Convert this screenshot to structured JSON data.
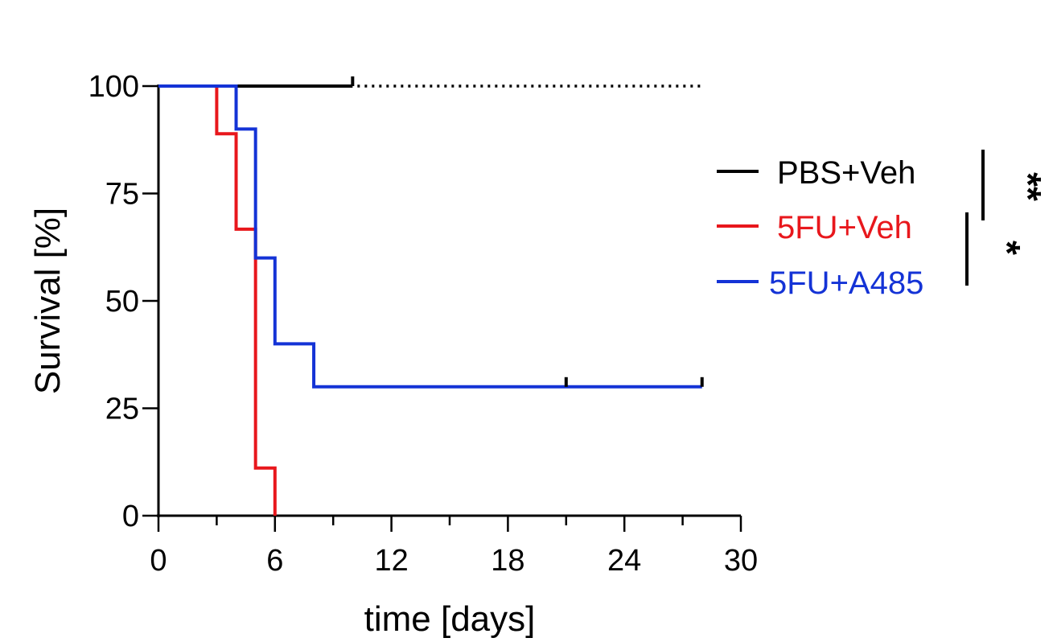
{
  "chart_data": {
    "type": "line",
    "subtype": "kaplan-meier",
    "xlabel": "time [days]",
    "ylabel": "Survival [%]",
    "xlim": [
      0,
      30
    ],
    "ylim": [
      0,
      100
    ],
    "xticks": [
      0,
      6,
      12,
      18,
      24,
      30
    ],
    "yticks": [
      0,
      25,
      50,
      75,
      100
    ],
    "grid": false,
    "legend_position": "right",
    "series": [
      {
        "name": "PBS+Veh",
        "color": "#000000",
        "steps": [
          [
            0,
            100
          ],
          [
            10,
            100
          ]
        ],
        "dotted_extension": [
          10,
          28
        ],
        "censor_marks": [
          10
        ]
      },
      {
        "name": "5FU+Veh",
        "color": "#e8171c",
        "steps": [
          [
            0,
            100
          ],
          [
            3,
            88.9
          ],
          [
            4,
            66.7
          ],
          [
            5,
            11.1
          ],
          [
            6,
            0
          ]
        ],
        "censor_marks": []
      },
      {
        "name": "5FU+A485",
        "color": "#1433d6",
        "steps": [
          [
            0,
            100
          ],
          [
            4,
            90
          ],
          [
            5,
            60
          ],
          [
            6,
            40
          ],
          [
            8,
            30
          ],
          [
            28,
            30
          ]
        ],
        "censor_marks": [
          21,
          28
        ]
      }
    ],
    "significance": [
      {
        "label": "**",
        "between": [
          "PBS+Veh",
          "5FU+A485"
        ]
      },
      {
        "label": "*",
        "between": [
          "5FU+Veh",
          "5FU+A485"
        ]
      }
    ]
  }
}
